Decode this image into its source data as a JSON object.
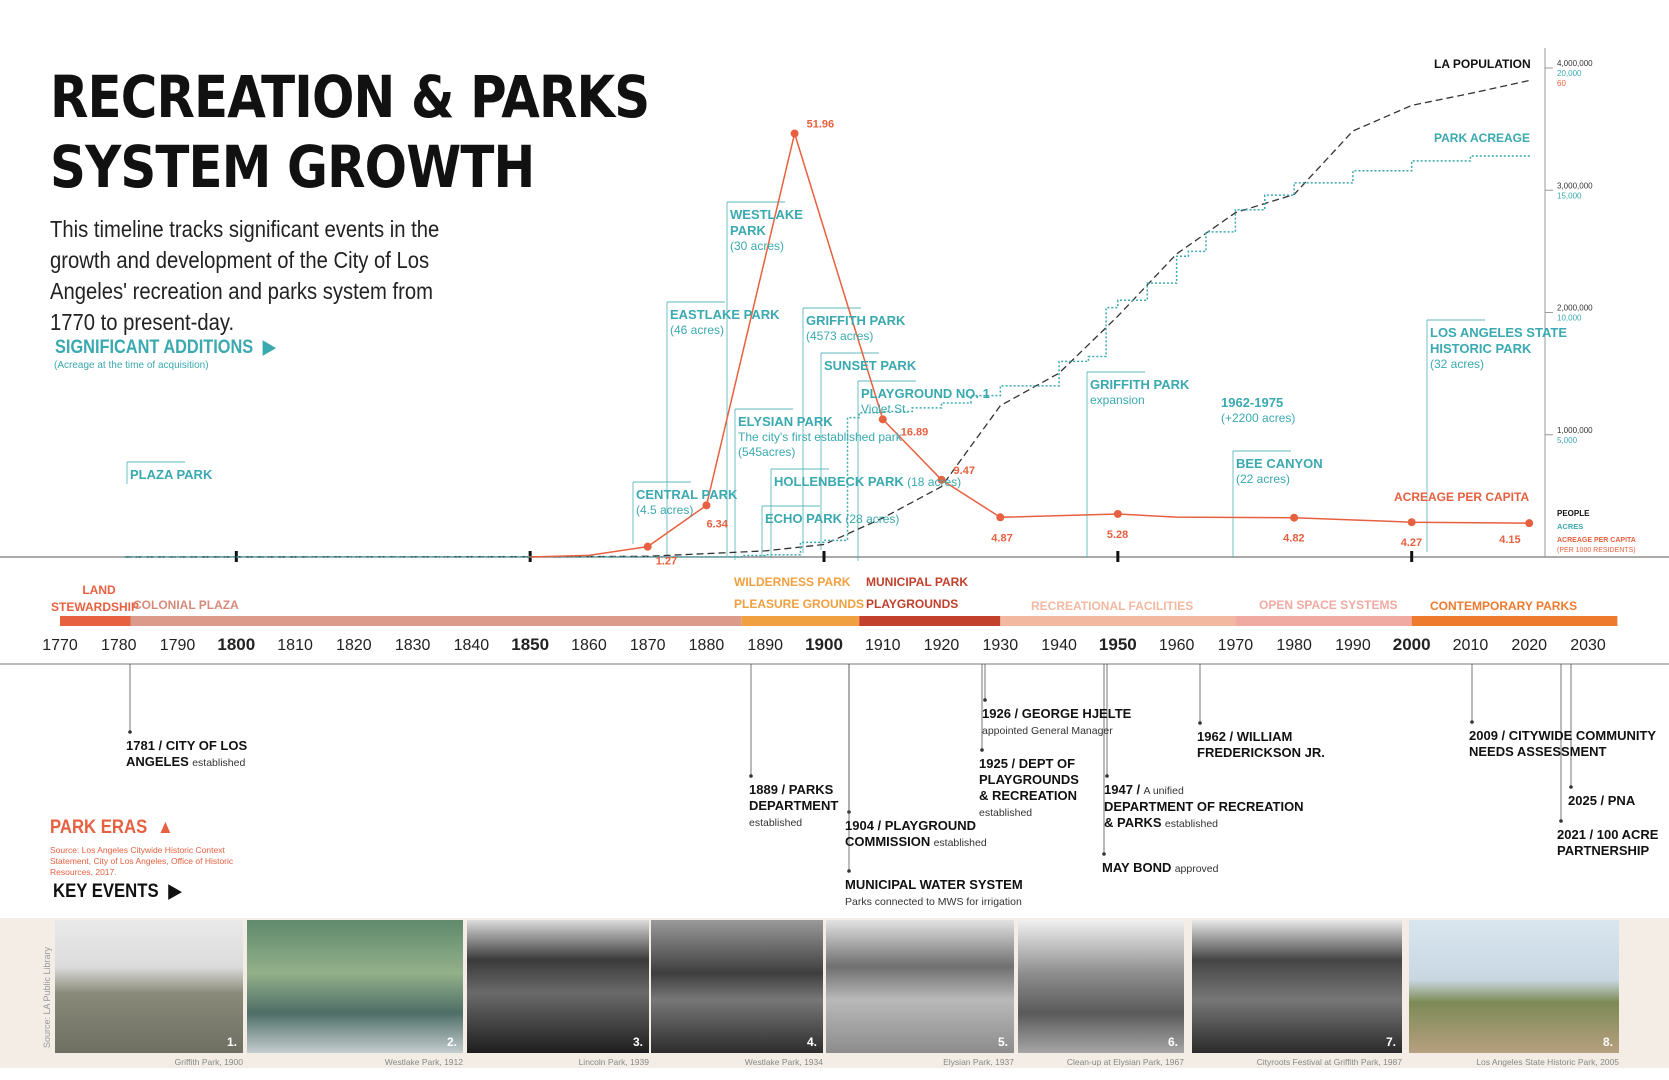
{
  "title_line1": "RECREATION & PARKS",
  "title_line2": "SYSTEM GROWTH",
  "intro": "This timeline tracks significant events in the growth and development of the City of Los Angeles' recreation and parks system from 1770 to present-day.",
  "significant_additions": {
    "label": "SIGNIFICANT ADDITIONS",
    "note": "(Acreage at the time of acquisition)"
  },
  "park_eras_label": "PARK ERAS",
  "park_eras_source": "Source: Los Angeles Citywide Historic Context Statement, City of Los Angeles, Office of Historic Resources, 2017.",
  "key_events_label": "KEY EVENTS",
  "photo_source": "Source: LA Public Library",
  "legend": {
    "la_population": "LA POPULATION",
    "park_acreage": "PARK ACREAGE",
    "acreage_per_capita": "ACREAGE PER CAPITA"
  },
  "right_axis": {
    "ticks": [
      {
        "people": "4,000,000",
        "acres": "20,000",
        "apc": "60"
      },
      {
        "people": "3,000,000",
        "acres": "15,000",
        "apc": ""
      },
      {
        "people": "2,000,000",
        "acres": "10,000",
        "apc": ""
      },
      {
        "people": "1,000,000",
        "acres": "5,000",
        "apc": ""
      }
    ],
    "label_people": "PEOPLE",
    "label_acres": "ACRES",
    "label_apc": "ACREAGE PER CAPITA",
    "label_apc_note": "(PER 1000 RESIDENTS)"
  },
  "colors": {
    "teal": "#3aa9b0",
    "orange": "#e7603f",
    "black": "#111111"
  },
  "timeline_years": [
    "1770",
    "1780",
    "1790",
    "1800",
    "1810",
    "1820",
    "1830",
    "1840",
    "1850",
    "1860",
    "1870",
    "1880",
    "1890",
    "1900",
    "1910",
    "1920",
    "1930",
    "1940",
    "1950",
    "1960",
    "1970",
    "1980",
    "1990",
    "2000",
    "2010",
    "2020",
    "2030"
  ],
  "bold_years": [
    "1800",
    "1850",
    "1900",
    "1950",
    "2000"
  ],
  "eras": [
    {
      "name": "LAND STEWARDSHIP",
      "start": 1770,
      "end": 1782,
      "color": "#e7603f"
    },
    {
      "name": "COLONIAL PLAZA",
      "start": 1782,
      "end": 1886,
      "color": "#dc9a8a"
    },
    {
      "name": "WILDERNESS PARK",
      "name2": "PLEASURE GROUNDS",
      "start": 1886,
      "end": 1906,
      "color": "#f0a040"
    },
    {
      "name": "MUNICIPAL PARK",
      "name2": "PLAYGROUNDS",
      "start": 1906,
      "end": 1930,
      "color": "#c2402c"
    },
    {
      "name": "RECREATIONAL FACILITIES",
      "start": 1930,
      "end": 1970,
      "color": "#f2b9a0"
    },
    {
      "name": "OPEN SPACE SYSTEMS",
      "start": 1970,
      "end": 2000,
      "color": "#f1aaa2"
    },
    {
      "name": "CONTEMPORARY PARKS",
      "start": 2000,
      "end": 2035,
      "color": "#ee7a2e"
    }
  ],
  "chart_data": {
    "type": "line",
    "x_range": [
      1767,
      2035
    ],
    "series": [
      {
        "name": "LA POPULATION",
        "axis": "people",
        "y_range": [
          0,
          4000000
        ],
        "x": [
          1781,
          1850,
          1870,
          1890,
          1900,
          1910,
          1920,
          1930,
          1940,
          1950,
          1960,
          1970,
          1980,
          1990,
          2000,
          2010,
          2020
        ],
        "values": [
          0,
          1600,
          5700,
          50000,
          102000,
          319000,
          576000,
          1238000,
          1504000,
          1970000,
          2479000,
          2816000,
          2966000,
          3485000,
          3694000,
          3792000,
          3898000
        ]
      },
      {
        "name": "PARK ACREAGE",
        "axis": "acres",
        "y_range": [
          0,
          20000
        ],
        "x": [
          1781,
          1886,
          1890,
          1896,
          1900,
          1904,
          1906,
          1910,
          1915,
          1920,
          1925,
          1930,
          1940,
          1945,
          1948,
          1950,
          1955,
          1960,
          1962,
          1965,
          1970,
          1975,
          1980,
          1990,
          2000,
          2010,
          2020
        ],
        "values": [
          5,
          60,
          90,
          600,
          680,
          5700,
          5900,
          5950,
          6100,
          6300,
          6600,
          7000,
          8000,
          8200,
          10200,
          10500,
          11200,
          12300,
          12500,
          13300,
          14200,
          14800,
          15300,
          15800,
          16200,
          16400,
          16500
        ]
      },
      {
        "name": "ACREAGE PER CAPITA",
        "axis": "apc",
        "y_range": [
          0,
          60
        ],
        "x": [
          1850,
          1860,
          1870,
          1880,
          1895,
          1910,
          1920,
          1930,
          1950,
          1960,
          1980,
          2000,
          2020
        ],
        "values": [
          0,
          0.2,
          1.27,
          6.34,
          51.96,
          16.89,
          9.47,
          4.87,
          5.28,
          4.9,
          4.82,
          4.27,
          4.15
        ],
        "labeled_points": [
          {
            "x": 1870,
            "value": 1.27,
            "label": "1.27"
          },
          {
            "x": 1880,
            "value": 6.34,
            "label": "6.34"
          },
          {
            "x": 1895,
            "value": 51.96,
            "label": "51.96"
          },
          {
            "x": 1910,
            "value": 16.89,
            "label": "16.89"
          },
          {
            "x": 1920,
            "value": 9.47,
            "label": "9.47"
          },
          {
            "x": 1930,
            "value": 4.87,
            "label": "4.87"
          },
          {
            "x": 1950,
            "value": 5.28,
            "label": "5.28"
          },
          {
            "x": 1980,
            "value": 4.82,
            "label": "4.82"
          },
          {
            "x": 2000,
            "value": 4.27,
            "label": "4.27"
          },
          {
            "x": 2020,
            "value": 4.15,
            "label": "4.15"
          }
        ]
      }
    ]
  },
  "additions": [
    {
      "year": 1781,
      "name": "PLAZA PARK",
      "sub": ""
    },
    {
      "year": 1870,
      "name": "CENTRAL PARK",
      "sub": "(4.5 acres)"
    },
    {
      "year": 1886,
      "name": "EASTLAKE PARK",
      "sub": "(46 acres)"
    },
    {
      "year": 1890,
      "name": "WESTLAKE",
      "name2": "PARK",
      "sub": "(30 acres)"
    },
    {
      "year": 1886,
      "name": "ELYSIAN PARK",
      "sub": "The city's first established park",
      "sub2": "(545acres)"
    },
    {
      "year": 1896,
      "name": "GRIFFITH PARK",
      "sub": "(4573 acres)"
    },
    {
      "year": 1900,
      "name": "SUNSET PARK",
      "sub": ""
    },
    {
      "year": 1904,
      "name": "PLAYGROUND NO. 1",
      "sub": "Violet St."
    },
    {
      "year": 1899,
      "name": "HOLLENBECK PARK",
      "sub": "(18 acres)"
    },
    {
      "year": 1892,
      "name": "ECHO PARK",
      "sub": "(28 acres)"
    },
    {
      "year": 1943,
      "name": "GRIFFITH PARK",
      "sub": "expansion"
    },
    {
      "year": 1962,
      "name": "1962-1975",
      "sub": "(+2200 acres)"
    },
    {
      "year": 1970,
      "name": "BEE CANYON",
      "sub": "(22 acres)"
    },
    {
      "year": 2001,
      "name": "LOS ANGELES STATE",
      "name2": "HISTORIC PARK",
      "sub": "(32 acres)"
    }
  ],
  "events": [
    {
      "year": 1781,
      "h1": "1781 / CITY OF LOS",
      "h2": "ANGELES",
      "s": "established"
    },
    {
      "year": 1889,
      "h1": "1889 / PARKS",
      "h2": "DEPARTMENT",
      "s": "established"
    },
    {
      "year": 1904,
      "h1": "1904 / PLAYGROUND",
      "h2": "COMMISSION",
      "s": "established"
    },
    {
      "year": 1904,
      "h1": "MUNICIPAL WATER SYSTEM",
      "h2": "",
      "s": "Parks connected to MWS for irrigation"
    },
    {
      "year": 1926,
      "h1": "1926 / GEORGE HJELTE",
      "h2": "",
      "s": "appointed General Manager"
    },
    {
      "year": 1925,
      "h1": "1925 / DEPT OF",
      "h2": "PLAYGROUNDS",
      "h3": "& RECREATION",
      "s": "established"
    },
    {
      "year": 1947,
      "h1": "1947 /",
      "h1s": "A unified",
      "h2": "DEPARTMENT OF RECREATION",
      "h3": "& PARKS",
      "s": "established"
    },
    {
      "year": 1947,
      "h1": "MAY BOND",
      "s": "approved"
    },
    {
      "year": 1962,
      "h1": "1962 / WILLIAM",
      "h2": "FREDERICKSON JR."
    },
    {
      "year": 2009,
      "h1": "2009 / CITYWIDE COMMUNITY",
      "h2": "NEEDS ASSESSMENT"
    },
    {
      "year": 2025,
      "h1": "2025 / PNA"
    },
    {
      "year": 2021,
      "h1": "2021 / 100 ACRE",
      "h2": "PARTNERSHIP"
    }
  ],
  "photos": [
    {
      "caption": "Griffith Park, 1900",
      "num": "1."
    },
    {
      "caption": "Westlake Park, 1912",
      "num": "2."
    },
    {
      "caption": "Lincoln Park, 1939",
      "num": "3."
    },
    {
      "caption": "Westlake Park, 1934",
      "num": "4."
    },
    {
      "caption": "Elysian Park, 1937",
      "num": "5."
    },
    {
      "caption": "Clean-up at Elysian Park, 1967",
      "num": "6."
    },
    {
      "caption": "Cityroots Festival at Griffith Park, 1987",
      "num": "7."
    },
    {
      "caption": "Los Angeles State Historic Park, 2005",
      "num": "8."
    }
  ]
}
